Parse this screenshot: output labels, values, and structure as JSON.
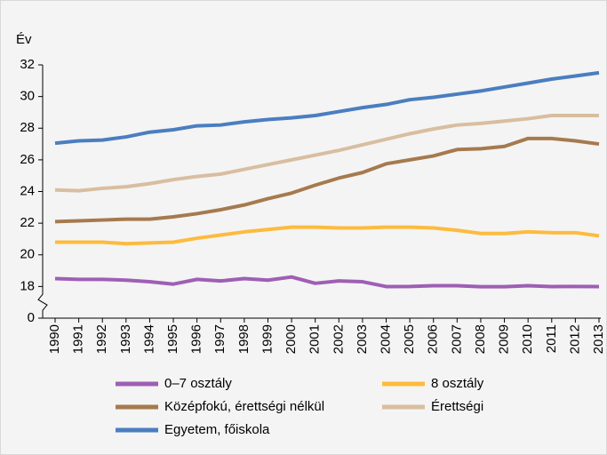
{
  "chart_data": {
    "type": "line",
    "y_label": "Év",
    "categories": [
      "1990",
      "1991",
      "1992",
      "1993",
      "1994",
      "1995",
      "1996",
      "1997",
      "1998",
      "1999",
      "2000",
      "2001",
      "2002",
      "2003",
      "2004",
      "2005",
      "2006",
      "2007",
      "2008",
      "2009",
      "2010",
      "2011",
      "2012",
      "2013"
    ],
    "ylim": [
      0,
      32
    ],
    "yticks": [
      0,
      18,
      20,
      22,
      24,
      26,
      28,
      30,
      32
    ],
    "axis_break": true,
    "series": [
      {
        "name": "0–7 osztály",
        "color": "#9e5fb4",
        "values": [
          18.5,
          18.45,
          18.45,
          18.4,
          18.3,
          18.15,
          18.45,
          18.35,
          18.5,
          18.4,
          18.6,
          18.2,
          18.35,
          18.3,
          17.95,
          18.0,
          18.05,
          18.05,
          17.9,
          17.85,
          18.05,
          17.95,
          18.0,
          17.95
        ]
      },
      {
        "name": "8 osztály",
        "color": "#fdbb3e",
        "values": [
          20.8,
          20.8,
          20.8,
          20.7,
          20.75,
          20.8,
          21.05,
          21.25,
          21.45,
          21.6,
          21.75,
          21.75,
          21.7,
          21.7,
          21.75,
          21.75,
          21.7,
          21.55,
          21.35,
          21.35,
          21.45,
          21.4,
          21.4,
          21.2
        ]
      },
      {
        "name": "Középfokú, érettségi nélkül",
        "color": "#a57a4e",
        "values": [
          22.1,
          22.15,
          22.2,
          22.25,
          22.25,
          22.4,
          22.6,
          22.85,
          23.15,
          23.55,
          23.9,
          24.4,
          24.85,
          25.2,
          25.75,
          26.0,
          26.25,
          26.65,
          26.7,
          26.85,
          27.35,
          27.35,
          27.2,
          27.0
        ]
      },
      {
        "name": "Érettségi",
        "color": "#d8bea0",
        "values": [
          24.1,
          24.05,
          24.2,
          24.3,
          24.5,
          24.75,
          24.95,
          25.1,
          25.4,
          25.7,
          26.0,
          26.3,
          26.6,
          26.95,
          27.3,
          27.65,
          27.95,
          28.2,
          28.3,
          28.45,
          28.6,
          28.8,
          28.8,
          28.8
        ]
      },
      {
        "name": "Egyetem, főiskola",
        "color": "#4a7ec0",
        "values": [
          27.05,
          27.2,
          27.25,
          27.45,
          27.75,
          27.9,
          28.15,
          28.2,
          28.4,
          28.55,
          28.65,
          28.8,
          29.05,
          29.3,
          29.5,
          29.8,
          29.95,
          30.15,
          30.35,
          30.6,
          30.85,
          31.1,
          31.3,
          31.5
        ]
      }
    ]
  }
}
